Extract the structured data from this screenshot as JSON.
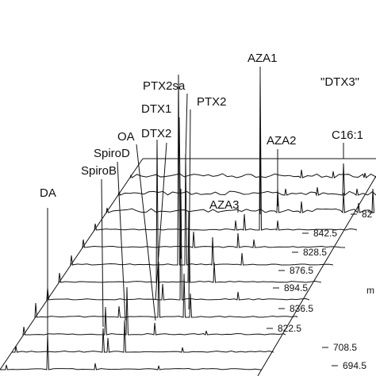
{
  "peak_labels": [
    "DA",
    "SpiroB",
    "SpiroD",
    "OA",
    "DTX2",
    "DTX1",
    "PTX2sa",
    "PTX2",
    "AZA1",
    "AZA2",
    "AZA3",
    "C16:1"
  ],
  "annotation": "\"DTX3\"",
  "trace_labels": [
    "694.5",
    "708.5",
    "822.5",
    "836.5",
    "894.5",
    "876.5",
    "828.5",
    "842.5",
    "82"
  ],
  "axis_label_fragment": "m"
}
